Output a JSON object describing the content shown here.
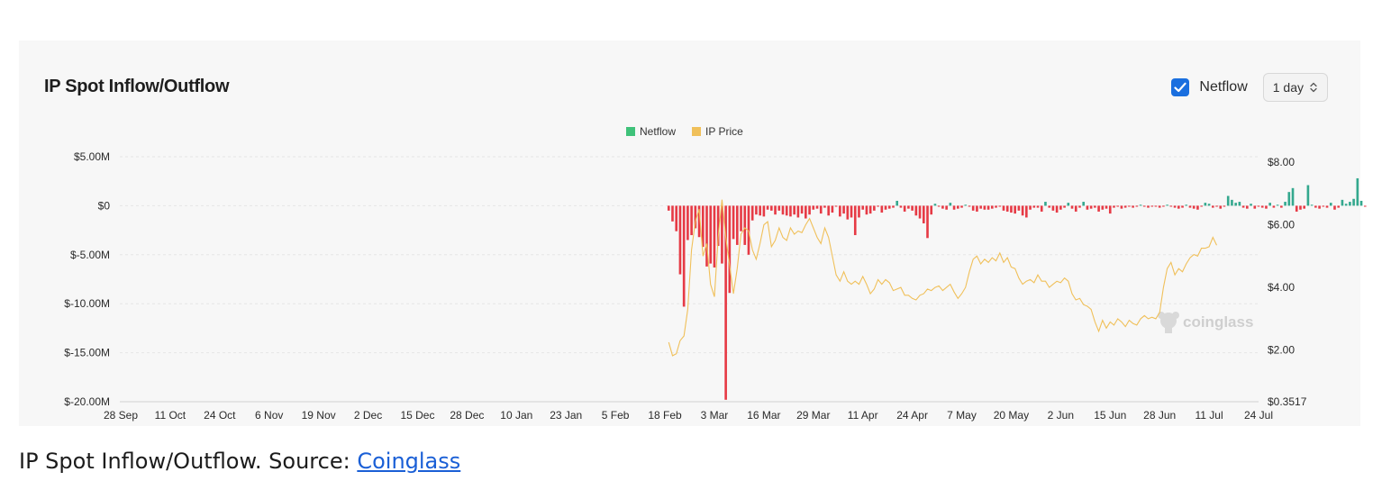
{
  "card": {
    "title": "IP Spot Inflow/Outflow",
    "netflow_checkbox_label": "Netflow",
    "netflow_checked": true,
    "interval_value": "1 day",
    "watermark": "coinglass"
  },
  "caption": {
    "text": "IP Spot Inflow/Outflow. Source: ",
    "link_text": "Coinglass"
  },
  "chart_data": {
    "type": "bar",
    "title": "IP Spot Inflow/Outflow",
    "legend": [
      {
        "name": "Netflow",
        "color": "#3fc27a"
      },
      {
        "name": "IP Price",
        "color": "#f0c05a"
      }
    ],
    "legend_position": "top-center",
    "grid": true,
    "colors": {
      "inflow": "#34a88e",
      "outflow": "#e63a45",
      "price": "#f0c05a"
    },
    "x_ticks": [
      "28 Sep",
      "11 Oct",
      "24 Oct",
      "6 Nov",
      "19 Nov",
      "2 Dec",
      "15 Dec",
      "28 Dec",
      "10 Jan",
      "23 Jan",
      "5 Feb",
      "18 Feb",
      "3 Mar",
      "16 Mar",
      "29 Mar",
      "11 Apr",
      "24 Apr",
      "7 May",
      "20 May",
      "2 Jun",
      "15 Jun",
      "28 Jun",
      "11 Jul",
      "24 Jul"
    ],
    "y_left": {
      "ticks": [
        "$5.00M",
        "$0",
        "$-5.00M",
        "$-10.00M",
        "$-15.00M",
        "$-20.00M"
      ],
      "min": -20,
      "max": 5,
      "unit": "$M"
    },
    "y_right": {
      "ticks": [
        "$8.00",
        "$6.00",
        "$4.00",
        "$2.00",
        "$0.3517"
      ],
      "min": 0.3517,
      "max": 8
    },
    "netflow_start_index": 144,
    "netflow_values": [
      -0.5,
      -1.6,
      -2.6,
      -7.0,
      -10.3,
      -3.5,
      -3.0,
      -2.3,
      -3.2,
      -4.2,
      -6.2,
      -5.9,
      -6.3,
      -4.1,
      -5.9,
      -19.8,
      -8.9,
      -3.4,
      -4.0,
      -2.6,
      -4.0,
      -5.0,
      -1.5,
      -0.9,
      -1.0,
      -1.1,
      -0.4,
      -0.5,
      -0.9,
      -0.5,
      -0.9,
      -1.0,
      -1.1,
      -0.9,
      -1.2,
      -0.8,
      -1.3,
      -0.9,
      -0.4,
      -0.3,
      -0.8,
      -0.2,
      -1.0,
      -0.7,
      -0.1,
      -1.1,
      -0.8,
      -1.4,
      -1.2,
      -3.0,
      -1.2,
      -0.4,
      -0.9,
      -0.8,
      -0.5,
      -0.1,
      -0.7,
      -0.4,
      -0.3,
      -0.2,
      0.5,
      -0.2,
      -0.6,
      -0.3,
      -0.5,
      -1.0,
      -1.3,
      -1.8,
      -3.3,
      -0.9,
      0.2,
      -0.1,
      -0.3,
      -0.4,
      0.3,
      -0.4,
      -0.3,
      -0.2,
      0.1,
      -0.1,
      -0.5,
      -0.6,
      -0.3,
      -0.4,
      -0.4,
      -0.3,
      -0.2,
      -0.1,
      -0.5,
      -0.6,
      -0.7,
      -0.8,
      -0.5,
      -1.0,
      -1.2,
      -0.4,
      -0.2,
      -0.2,
      -0.6,
      0.4,
      -0.2,
      -0.5,
      -0.7,
      -0.4,
      -0.2,
      0.3,
      -0.3,
      -0.6,
      -0.2,
      0.4,
      -0.4,
      -0.3,
      -0.2,
      -0.6,
      -0.4,
      -0.3,
      -0.8,
      -0.2,
      -0.1,
      -0.3,
      -0.2,
      -0.1,
      -0.2,
      -0.1,
      0.1,
      -0.1,
      -0.2,
      -0.1,
      -0.1,
      -0.2,
      -0.1,
      0.1,
      -0.1,
      -0.2,
      -0.3,
      -0.2,
      0.1,
      -0.2,
      -0.3,
      -0.4,
      -0.1,
      0.3,
      0.2,
      -0.2,
      -0.1,
      -0.3,
      -0.1,
      1.0,
      0.6,
      0.3,
      0.4,
      -0.2,
      -0.3,
      0.2,
      -0.3,
      -0.1,
      -0.2,
      -0.3,
      0.3,
      -0.2,
      0.1,
      -0.2,
      0.4,
      1.4,
      1.8,
      -0.6,
      -0.4,
      -0.3,
      2.1,
      0.1,
      -0.2,
      -0.3,
      -0.1,
      -0.2,
      0.3,
      -0.4,
      -0.2,
      0.6,
      0.2,
      0.4,
      0.7,
      2.8,
      0.5,
      -0.1
    ],
    "price_points": [
      [
        144,
        2.25
      ],
      [
        145,
        1.82
      ],
      [
        146,
        1.88
      ],
      [
        147,
        2.3
      ],
      [
        148,
        2.45
      ],
      [
        149,
        3.3
      ],
      [
        150,
        5.2
      ],
      [
        151,
        6.1
      ],
      [
        152,
        6.5
      ],
      [
        153,
        5.0
      ],
      [
        154,
        5.4
      ],
      [
        155,
        4.1
      ],
      [
        156,
        3.7
      ],
      [
        157,
        5.6
      ],
      [
        158,
        6.8
      ],
      [
        159,
        5.6
      ],
      [
        160,
        4.7
      ],
      [
        161,
        3.8
      ],
      [
        162,
        4.6
      ],
      [
        163,
        5.7
      ],
      [
        164,
        5.9
      ],
      [
        165,
        5.8
      ],
      [
        166,
        5.2
      ],
      [
        167,
        4.9
      ],
      [
        168,
        5.4
      ],
      [
        169,
        6.0
      ],
      [
        170,
        6.1
      ],
      [
        171,
        5.3
      ],
      [
        172,
        5.5
      ],
      [
        173,
        5.9
      ],
      [
        174,
        5.6
      ],
      [
        175,
        5.5
      ],
      [
        176,
        5.9
      ],
      [
        177,
        5.7
      ],
      [
        178,
        5.8
      ],
      [
        179,
        5.75
      ],
      [
        180,
        6.0
      ],
      [
        181,
        6.2
      ],
      [
        182,
        5.9
      ],
      [
        183,
        5.6
      ],
      [
        184,
        5.4
      ],
      [
        185,
        5.9
      ],
      [
        186,
        5.6
      ],
      [
        187,
        5.0
      ],
      [
        188,
        4.4
      ],
      [
        189,
        4.2
      ],
      [
        190,
        4.5
      ],
      [
        191,
        4.2
      ],
      [
        192,
        4.1
      ],
      [
        193,
        4.2
      ],
      [
        194,
        4.1
      ],
      [
        195,
        4.35
      ],
      [
        196,
        4.1
      ],
      [
        197,
        3.8
      ],
      [
        198,
        3.95
      ],
      [
        199,
        4.25
      ],
      [
        200,
        4.1
      ],
      [
        201,
        4.25
      ],
      [
        202,
        4.15
      ],
      [
        203,
        3.9
      ],
      [
        204,
        3.95
      ],
      [
        205,
        4.0
      ],
      [
        206,
        3.75
      ],
      [
        207,
        3.75
      ],
      [
        208,
        3.65
      ],
      [
        209,
        3.6
      ],
      [
        210,
        3.75
      ],
      [
        211,
        3.8
      ],
      [
        212,
        3.95
      ],
      [
        213,
        3.9
      ],
      [
        214,
        4.0
      ],
      [
        215,
        4.05
      ],
      [
        216,
        3.9
      ],
      [
        217,
        4.0
      ],
      [
        218,
        4.1
      ],
      [
        219,
        3.85
      ],
      [
        220,
        3.65
      ],
      [
        221,
        3.8
      ],
      [
        222,
        4.0
      ],
      [
        223,
        4.5
      ],
      [
        224,
        4.9
      ],
      [
        225,
        5.0
      ],
      [
        226,
        4.75
      ],
      [
        227,
        4.9
      ],
      [
        228,
        4.8
      ],
      [
        229,
        4.95
      ],
      [
        230,
        4.85
      ],
      [
        231,
        5.1
      ],
      [
        232,
        4.8
      ],
      [
        233,
        4.95
      ],
      [
        234,
        4.65
      ],
      [
        235,
        4.6
      ],
      [
        236,
        4.3
      ],
      [
        237,
        4.1
      ],
      [
        238,
        4.2
      ],
      [
        239,
        4.25
      ],
      [
        240,
        4.15
      ],
      [
        241,
        4.4
      ],
      [
        242,
        4.2
      ],
      [
        243,
        4.2
      ],
      [
        244,
        4.0
      ],
      [
        245,
        4.1
      ],
      [
        246,
        4.2
      ],
      [
        247,
        4.15
      ],
      [
        248,
        4.3
      ],
      [
        249,
        4.2
      ],
      [
        250,
        3.8
      ],
      [
        251,
        3.6
      ],
      [
        252,
        3.65
      ],
      [
        253,
        3.45
      ],
      [
        254,
        3.4
      ],
      [
        255,
        3.3
      ],
      [
        256,
        2.9
      ],
      [
        257,
        2.6
      ],
      [
        258,
        2.95
      ],
      [
        259,
        2.7
      ],
      [
        260,
        2.9
      ],
      [
        261,
        2.8
      ],
      [
        262,
        3.0
      ],
      [
        263,
        2.9
      ],
      [
        264,
        2.75
      ],
      [
        265,
        2.95
      ],
      [
        266,
        2.85
      ],
      [
        267,
        2.8
      ],
      [
        268,
        3.0
      ],
      [
        269,
        3.1
      ],
      [
        270,
        3.0
      ],
      [
        271,
        3.05
      ],
      [
        272,
        3.0
      ],
      [
        273,
        3.2
      ],
      [
        274,
        4.0
      ],
      [
        275,
        4.6
      ],
      [
        276,
        4.8
      ],
      [
        277,
        4.4
      ],
      [
        278,
        4.6
      ],
      [
        279,
        4.5
      ],
      [
        280,
        4.75
      ],
      [
        281,
        4.95
      ],
      [
        282,
        5.05
      ],
      [
        283,
        5.0
      ],
      [
        284,
        5.25
      ],
      [
        285,
        5.25
      ],
      [
        286,
        5.3
      ],
      [
        287,
        5.6
      ],
      [
        288,
        5.35
      ]
    ]
  }
}
